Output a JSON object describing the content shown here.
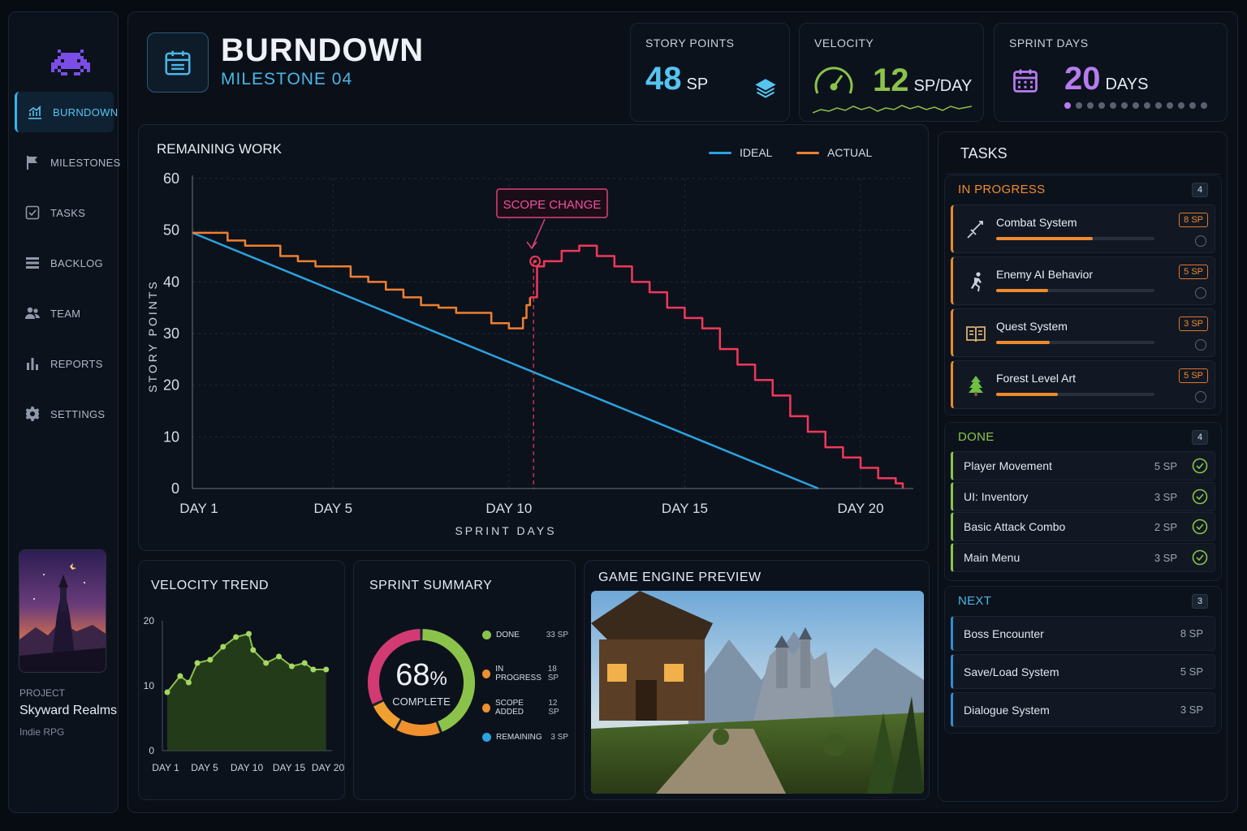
{
  "sidebar": {
    "items": [
      {
        "label": "BURNDOWN",
        "icon": "chart-icon",
        "active": true
      },
      {
        "label": "MILESTONES",
        "icon": "flag-icon"
      },
      {
        "label": "TASKS",
        "icon": "checkbox-icon"
      },
      {
        "label": "BACKLOG",
        "icon": "list-icon"
      },
      {
        "label": "TEAM",
        "icon": "team-icon"
      },
      {
        "label": "REPORTS",
        "icon": "bar-chart-icon"
      },
      {
        "label": "SETTINGS",
        "icon": "gear-icon"
      }
    ],
    "project": {
      "label": "PROJECT",
      "name": "Skyward Realms",
      "type": "Indie RPG"
    }
  },
  "header": {
    "title": "BURNDOWN",
    "subtitle": "MILESTONE 04"
  },
  "stats": {
    "story_points": {
      "label": "STORY POINTS",
      "value": "48",
      "unit": "SP"
    },
    "velocity": {
      "label": "VELOCITY",
      "value": "12",
      "unit": "SP/DAY"
    },
    "sprint_days": {
      "label": "SPRINT DAYS",
      "value": "20",
      "unit": "DAYS",
      "progress_dots": 13,
      "filled_dots": 1
    }
  },
  "burndown": {
    "title": "REMAINING WORK",
    "legend": {
      "ideal": "IDEAL",
      "actual": "ACTUAL"
    },
    "annotation": "SCOPE CHANGE",
    "ylabel": "STORY POINTS",
    "xlabel": "SPRINT DAYS",
    "yticks": [
      "60",
      "50",
      "40",
      "30",
      "20",
      "10",
      "0"
    ],
    "xticks": [
      "DAY 1",
      "DAY 5",
      "DAY 10",
      "DAY 15",
      "DAY 20"
    ]
  },
  "chart_data": [
    {
      "type": "line",
      "title": "REMAINING WORK",
      "xlabel": "SPRINT DAYS",
      "ylabel": "STORY POINTS",
      "ylim": [
        0,
        60
      ],
      "xlim": [
        1,
        21.5
      ],
      "series": [
        {
          "name": "IDEAL",
          "color": "#2ba3e0",
          "x": [
            1,
            18.8
          ],
          "y": [
            49.5,
            0
          ]
        },
        {
          "name": "ACTUAL",
          "color": "#ef8030",
          "x": [
            1,
            1.5,
            2,
            2.5,
            3,
            3.5,
            4,
            4.5,
            5,
            5.5,
            6,
            6.5,
            7,
            7.5,
            8,
            8.5,
            9,
            9.5,
            10,
            10.2,
            10.4,
            10.5,
            10.6
          ],
          "y": [
            49.5,
            49.5,
            48,
            47,
            47,
            45,
            44,
            43,
            43,
            41,
            40,
            38.5,
            37,
            35.5,
            35,
            34,
            34,
            32,
            31,
            31,
            33,
            35.5,
            37
          ]
        },
        {
          "name": "",
          "color": "#f0385a",
          "x": [
            10.6,
            10.8,
            11,
            11.5,
            12,
            12.5,
            13,
            13.5,
            14,
            14.5,
            15,
            15.5,
            16,
            16.5,
            17,
            17.5,
            18,
            18.5,
            19,
            19.5,
            20,
            20.5,
            21,
            21.2
          ],
          "y": [
            37,
            43,
            44,
            46,
            47,
            45,
            43,
            40,
            38,
            35,
            33,
            31,
            27,
            24,
            21,
            18,
            14,
            11,
            8,
            6,
            4,
            2,
            1,
            0
          ]
        }
      ],
      "annotations": [
        {
          "text": "SCOPE CHANGE",
          "x": 10.7
        }
      ]
    },
    {
      "type": "area",
      "title": "VELOCITY TREND",
      "ylim": [
        0,
        20
      ],
      "xticks": [
        "DAY 1",
        "DAY 5",
        "DAY 10",
        "DAY 15",
        "DAY 20"
      ],
      "series": [
        {
          "name": "",
          "color": "#8bc34a",
          "x": [
            1,
            2.5,
            3.5,
            4.5,
            6,
            7.5,
            9,
            10.5,
            11,
            12.5,
            14,
            15.5,
            17,
            18,
            19.5
          ],
          "y": [
            9,
            11.5,
            10.5,
            13.5,
            14,
            16,
            17.5,
            18,
            15.5,
            13.5,
            14.5,
            13,
            13.5,
            12.5,
            12.5
          ]
        }
      ],
      "yticks": [
        "20",
        "10",
        "0"
      ]
    },
    {
      "type": "pie",
      "title": "SPRINT SUMMARY",
      "center_value": "68%",
      "center_label": "COMPLETE",
      "slices": [
        {
          "label": "DONE",
          "value": 33,
          "display": "33 SP",
          "color": "#8bc34a"
        },
        {
          "label": "IN PROGRESS",
          "value": 18,
          "display": "18 SP",
          "color": "#f0902e"
        },
        {
          "label": "SCOPE ADDED",
          "value": 12,
          "display": "12 SP",
          "color": "#f0902e"
        },
        {
          "label": "REMAINING",
          "value": 3,
          "display": "3 SP",
          "color": "#2ba3e0"
        }
      ]
    }
  ],
  "velocity_trend": {
    "title": "VELOCITY TREND"
  },
  "sprint_summary": {
    "title": "SPRINT SUMMARY",
    "center_value": "68",
    "center_pct": "%",
    "center_label": "COMPLETE",
    "items": [
      {
        "label": "DONE",
        "value": "33 SP",
        "color": "#8bc34a"
      },
      {
        "label": "IN PROGRESS",
        "value": "18 SP",
        "color": "#f0902e"
      },
      {
        "label": "SCOPE ADDED",
        "value": "12 SP",
        "color": "#f0902e"
      },
      {
        "label": "REMAINING",
        "value": "3 SP",
        "color": "#2ba3e0"
      }
    ]
  },
  "engine": {
    "title": "GAME ENGINE PREVIEW"
  },
  "tasks": {
    "title": "TASKS",
    "in_progress": {
      "label": "IN PROGRESS",
      "count": "4",
      "items": [
        {
          "name": "Combat System",
          "sp": "8 SP",
          "progress": 0.61,
          "icon": "sword-icon"
        },
        {
          "name": "Enemy AI Behavior",
          "sp": "5 SP",
          "progress": 0.33,
          "icon": "running-figure-icon"
        },
        {
          "name": "Quest System",
          "sp": "3 SP",
          "progress": 0.34,
          "icon": "book-icon"
        },
        {
          "name": "Forest Level Art",
          "sp": "5 SP",
          "progress": 0.39,
          "icon": "tree-icon"
        }
      ]
    },
    "done": {
      "label": "DONE",
      "count": "4",
      "items": [
        {
          "name": "Player Movement",
          "sp": "5 SP"
        },
        {
          "name": "UI: Inventory",
          "sp": "3 SP"
        },
        {
          "name": "Basic Attack Combo",
          "sp": "2 SP"
        },
        {
          "name": "Main Menu",
          "sp": "3 SP"
        }
      ]
    },
    "next": {
      "label": "NEXT",
      "count": "3",
      "items": [
        {
          "name": "Boss Encounter",
          "sp": "8 SP"
        },
        {
          "name": "Save/Load System",
          "sp": "5 SP"
        },
        {
          "name": "Dialogue System",
          "sp": "3 SP"
        }
      ]
    }
  },
  "colors": {
    "accent": "#38b4ea",
    "orange": "#ef8030",
    "red": "#f0385a",
    "green": "#8bc34a",
    "purple": "#b77cf0"
  }
}
